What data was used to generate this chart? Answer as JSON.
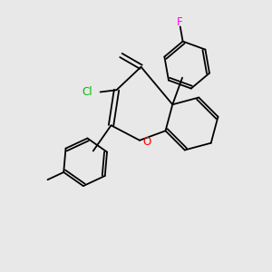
{
  "background_color": "#e8e8e8",
  "bond_color": "#000000",
  "atom_colors": {
    "O": "#ff0000",
    "Cl": "#00bb00",
    "F": "#ff00ff"
  },
  "figsize": [
    3.0,
    3.0
  ],
  "dpi": 100
}
